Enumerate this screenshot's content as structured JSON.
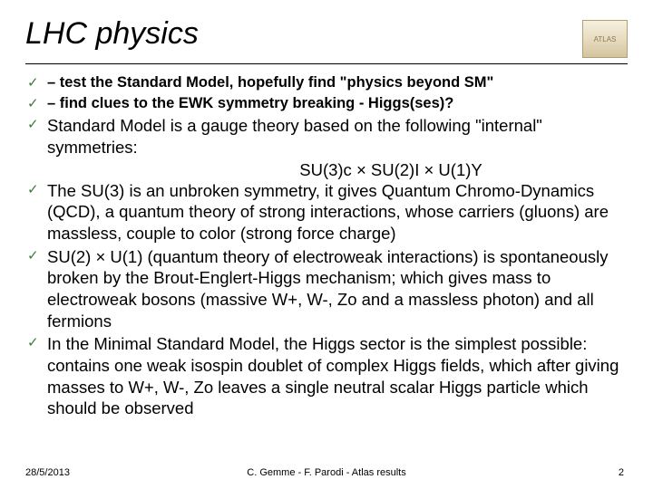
{
  "title": "LHC physics",
  "logo_label": "ATLAS",
  "bold_bullets": [
    "– test the Standard Model, hopefully find \"physics beyond SM\"",
    "– find clues to the EWK symmetry breaking - Higgs(ses)?"
  ],
  "body_bullets": [
    "Standard Model is a gauge theory based on the following \"internal\" symmetries:",
    "The SU(3) is an unbroken symmetry, it gives Quantum Chromo-Dynamics (QCD), a quantum theory of strong interactions, whose carriers (gluons) are massless, couple to color (strong force charge)",
    "SU(2) × U(1) (quantum theory of electroweak interactions) is spontaneously broken by the Brout-Englert-Higgs mechanism; which gives mass to electroweak bosons (massive W+, W-, Zo and a massless photon) and all fermions",
    "In the Minimal Standard Model, the Higgs sector is the simplest possible: contains one weak isospin doublet of complex Higgs fields, which after giving masses to W+, W-, Zo leaves a single neutral scalar Higgs particle which should be observed"
  ],
  "formula": "SU(3)c × SU(2)I × U(1)Y",
  "footer": {
    "date": "28/5/2013",
    "center": "C. Gemme - F. Parodi - Atlas results",
    "page": "2"
  },
  "colors": {
    "check": "#3a7a3a",
    "text": "#000000",
    "rule": "#000000",
    "bg": "#ffffff"
  },
  "fontsizes": {
    "title": 34,
    "bold_bullet": 16.5,
    "body_bullet": 18.5,
    "footer": 11
  }
}
